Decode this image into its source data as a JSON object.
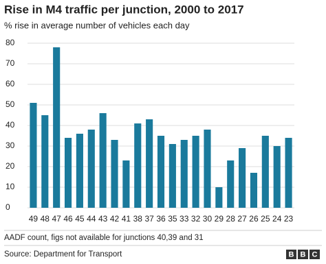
{
  "chart_data": {
    "type": "bar",
    "title": "Rise in M4 traffic per junction, 2000 to 2017",
    "subtitle": "% rise in average number of vehicles each day",
    "categories": [
      "49",
      "48",
      "47",
      "46",
      "45",
      "44",
      "43",
      "42",
      "41",
      "38",
      "37",
      "36",
      "35",
      "33",
      "32",
      "30",
      "29",
      "28",
      "27",
      "26",
      "25",
      "24",
      "23"
    ],
    "values": [
      51,
      45,
      78,
      34,
      36,
      38,
      46,
      33,
      23,
      41,
      43,
      35,
      31,
      33,
      35,
      38,
      10,
      23,
      29,
      17,
      35,
      30,
      34
    ],
    "color": "#1a7a9c",
    "ylim": [
      0,
      80
    ],
    "yticks": [
      0,
      10,
      20,
      30,
      40,
      50,
      60,
      70,
      80
    ],
    "grid": true,
    "note": "AADF count, figs not available for junctions 40,39 and 31",
    "source": "Source: Department for Transport",
    "logo": [
      "B",
      "B",
      "C"
    ]
  }
}
